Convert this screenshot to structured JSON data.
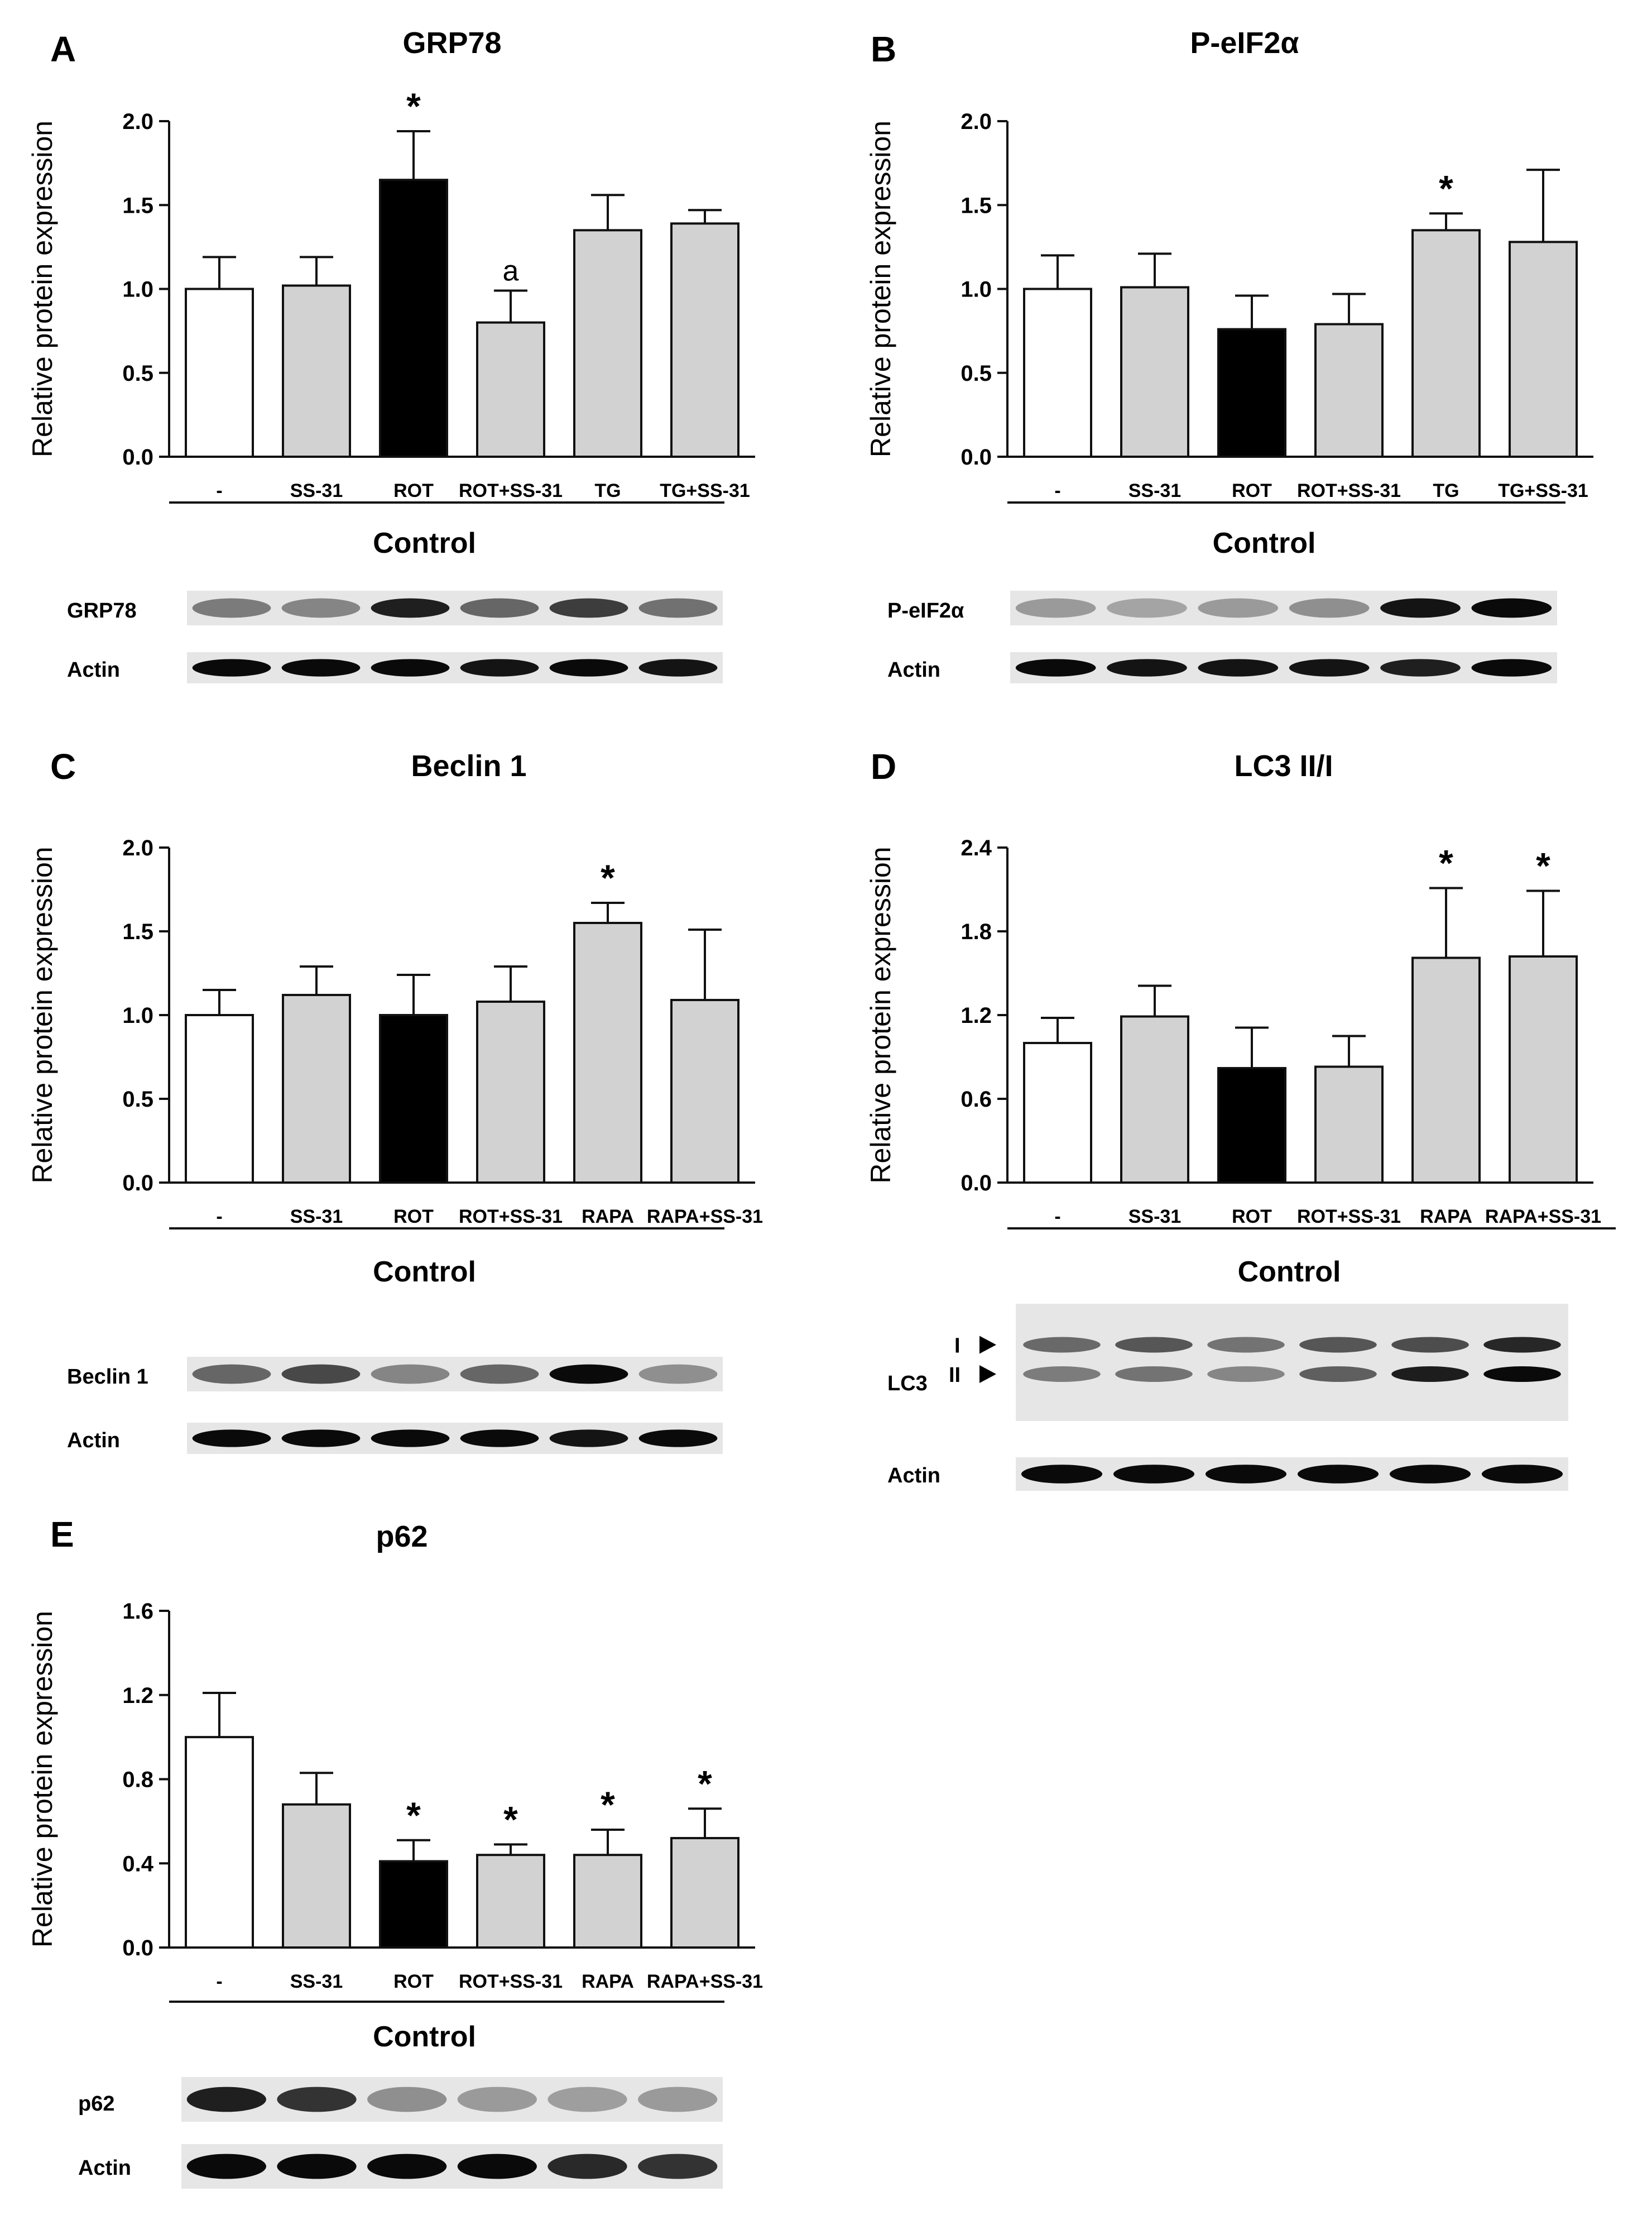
{
  "colors": {
    "control": "#ffffff",
    "treated": "#d2d2d2",
    "rotenone": "#000000",
    "axis": "#111111"
  },
  "chart_data": [
    {
      "type": "bar",
      "panel_letter": "A",
      "title": "GRP78",
      "ylabel": "Relative protein expression",
      "ylim": [
        0,
        2.0
      ],
      "yticks": [
        "0.0",
        "0.5",
        "1.0",
        "1.5",
        "2.0"
      ],
      "categories": [
        "-",
        "SS-31",
        "ROT",
        "ROT+SS-31",
        "TG",
        "TG+SS-31"
      ],
      "values": [
        1.0,
        1.02,
        1.65,
        0.8,
        1.35,
        1.39
      ],
      "errors": [
        0.19,
        0.17,
        0.29,
        0.19,
        0.21,
        0.08
      ],
      "fill_types": [
        "control",
        "treated",
        "rotenone",
        "treated",
        "treated",
        "treated"
      ],
      "annotations": [
        "",
        "",
        "*",
        "a",
        "",
        ""
      ],
      "group_label": "Control",
      "blot_labels": [
        "GRP78",
        "Actin"
      ]
    },
    {
      "type": "bar",
      "panel_letter": "B",
      "title": "P-eIF2α",
      "ylabel": "Relative protein expression",
      "ylim": [
        0,
        2.0
      ],
      "yticks": [
        "0.0",
        "0.5",
        "1.0",
        "1.5",
        "2.0"
      ],
      "categories": [
        "-",
        "SS-31",
        "ROT",
        "ROT+SS-31",
        "TG",
        "TG+SS-31"
      ],
      "values": [
        1.0,
        1.01,
        0.76,
        0.79,
        1.35,
        1.28
      ],
      "errors": [
        0.2,
        0.2,
        0.2,
        0.18,
        0.1,
        0.43
      ],
      "fill_types": [
        "control",
        "treated",
        "rotenone",
        "treated",
        "treated",
        "treated"
      ],
      "annotations": [
        "",
        "",
        "",
        "",
        "*",
        ""
      ],
      "group_label": "Control",
      "blot_labels": [
        "P-eIF2α",
        "Actin"
      ]
    },
    {
      "type": "bar",
      "panel_letter": "C",
      "title": "Beclin 1",
      "ylabel": "Relative protein expression",
      "ylim": [
        0,
        2.0
      ],
      "yticks": [
        "0.0",
        "0.5",
        "1.0",
        "1.5",
        "2.0"
      ],
      "categories": [
        "-",
        "SS-31",
        "ROT",
        "ROT+SS-31",
        "RAPA",
        "RAPA+SS-31"
      ],
      "values": [
        1.0,
        1.12,
        1.0,
        1.08,
        1.55,
        1.09
      ],
      "errors": [
        0.15,
        0.17,
        0.24,
        0.21,
        0.12,
        0.42
      ],
      "fill_types": [
        "control",
        "treated",
        "rotenone",
        "treated",
        "treated",
        "treated"
      ],
      "annotations": [
        "",
        "",
        "",
        "",
        "*",
        ""
      ],
      "group_label": "Control",
      "blot_labels": [
        "Beclin 1",
        "Actin"
      ]
    },
    {
      "type": "bar",
      "panel_letter": "D",
      "title": "LC3 II/I",
      "ylabel": "Relative protein expression",
      "ylim": [
        0,
        2.4
      ],
      "yticks": [
        "0.0",
        "0.6",
        "1.2",
        "1.8",
        "2.4"
      ],
      "categories": [
        "-",
        "SS-31",
        "ROT",
        "ROT+SS-31",
        "RAPA",
        "RAPA+SS-31"
      ],
      "values": [
        1.0,
        1.19,
        0.82,
        0.83,
        1.61,
        1.62
      ],
      "errors": [
        0.18,
        0.22,
        0.29,
        0.22,
        0.5,
        0.47
      ],
      "fill_types": [
        "control",
        "treated",
        "rotenone",
        "treated",
        "treated",
        "treated"
      ],
      "annotations": [
        "",
        "",
        "",
        "",
        "*",
        "*"
      ],
      "group_label": "Control",
      "blot_labels": [
        "LC3",
        "I",
        "II",
        "Actin"
      ]
    },
    {
      "type": "bar",
      "panel_letter": "E",
      "title": "p62",
      "ylabel": "Relative protein expression",
      "ylim": [
        0,
        1.6
      ],
      "yticks": [
        "0.0",
        "0.4",
        "0.8",
        "1.2",
        "1.6"
      ],
      "categories": [
        "-",
        "SS-31",
        "ROT",
        "ROT+SS-31",
        "RAPA",
        "RAPA+SS-31"
      ],
      "values": [
        1.0,
        0.68,
        0.41,
        0.44,
        0.44,
        0.52
      ],
      "errors": [
        0.21,
        0.15,
        0.1,
        0.05,
        0.12,
        0.14
      ],
      "fill_types": [
        "control",
        "treated",
        "rotenone",
        "treated",
        "treated",
        "treated"
      ],
      "annotations": [
        "",
        "",
        "*",
        "*",
        "*",
        "*"
      ],
      "group_label": "Control",
      "blot_labels": [
        "p62",
        "Actin"
      ]
    }
  ]
}
